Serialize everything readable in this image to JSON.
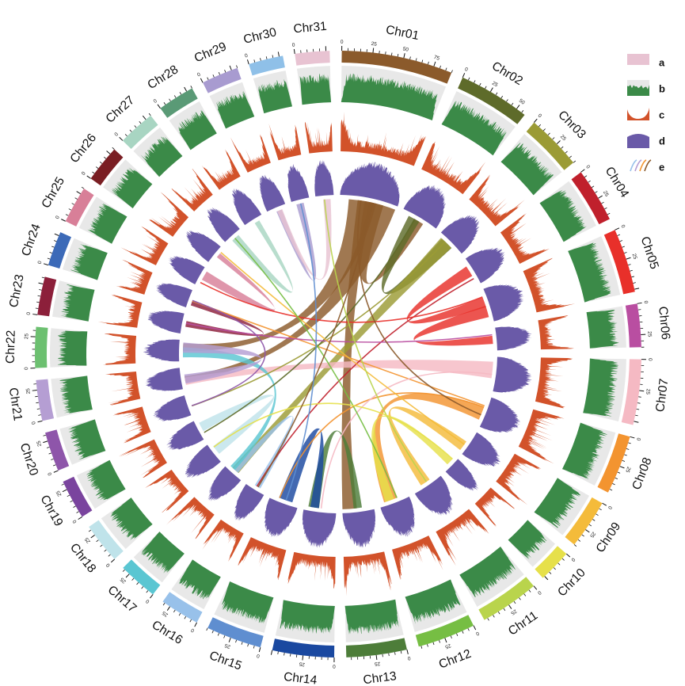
{
  "chart_data": {
    "type": "circos",
    "chromosomes": [
      {
        "name": "Chr01",
        "length": 90,
        "color": "#8b5a2b"
      },
      {
        "name": "Chr02",
        "length": 58,
        "color": "#5e6b2a"
      },
      {
        "name": "Chr03",
        "length": 45,
        "color": "#9b9b35"
      },
      {
        "name": "Chr04",
        "length": 44,
        "color": "#c0202c"
      },
      {
        "name": "Chr05",
        "length": 52,
        "color": "#e8302a"
      },
      {
        "name": "Chr06",
        "length": 35,
        "color": "#b94ea1"
      },
      {
        "name": "Chr07",
        "length": 53,
        "color": "#f5b9c3"
      },
      {
        "name": "Chr08",
        "length": 48,
        "color": "#f39430"
      },
      {
        "name": "Chr09",
        "length": 40,
        "color": "#f4bb3a"
      },
      {
        "name": "Chr10",
        "length": 27,
        "color": "#e6e04a"
      },
      {
        "name": "Chr11",
        "length": 48,
        "color": "#b9d44c"
      },
      {
        "name": "Chr12",
        "length": 47,
        "color": "#76be43"
      },
      {
        "name": "Chr13",
        "length": 49,
        "color": "#4d7d39"
      },
      {
        "name": "Chr14",
        "length": 50,
        "color": "#1a48a0"
      },
      {
        "name": "Chr15",
        "length": 45,
        "color": "#5f8ed0"
      },
      {
        "name": "Chr16",
        "length": 32,
        "color": "#98c1ea"
      },
      {
        "name": "Chr17",
        "length": 32,
        "color": "#5ac6d2"
      },
      {
        "name": "Chr18",
        "length": 33,
        "color": "#bfe3ea"
      },
      {
        "name": "Chr19",
        "length": 32,
        "color": "#7a449e"
      },
      {
        "name": "Chr20",
        "length": 32,
        "color": "#8e55aa"
      },
      {
        "name": "Chr21",
        "length": 33,
        "color": "#b59ed3"
      },
      {
        "name": "Chr22",
        "length": 33,
        "color": "#6cc070"
      },
      {
        "name": "Chr23",
        "length": 31,
        "color": "#8c1f3a"
      },
      {
        "name": "Chr24",
        "length": 28,
        "color": "#3c6ab8"
      },
      {
        "name": "Chr25",
        "length": 30,
        "color": "#d87f98"
      },
      {
        "name": "Chr26",
        "length": 30,
        "color": "#7a1e23"
      },
      {
        "name": "Chr27",
        "length": 30,
        "color": "#a8d5c2"
      },
      {
        "name": "Chr28",
        "length": 30,
        "color": "#5a9a76"
      },
      {
        "name": "Chr29",
        "length": 30,
        "color": "#a89bd0"
      },
      {
        "name": "Chr30",
        "length": 28,
        "color": "#8fc0e8"
      },
      {
        "name": "Chr31",
        "length": 28,
        "color": "#e8c3d2"
      }
    ],
    "tracks": [
      {
        "id": "a",
        "kind": "ideogram"
      },
      {
        "id": "b",
        "kind": "histogram",
        "color": "#3b8a48",
        "background": "#e8e8e8"
      },
      {
        "id": "c",
        "kind": "histogram",
        "color": "#d2522a"
      },
      {
        "id": "d",
        "kind": "histogram",
        "color": "#6a5aa8"
      },
      {
        "id": "e",
        "kind": "links"
      }
    ],
    "links": [
      {
        "from": "Chr01",
        "to": "Chr13",
        "kind": "ribbon"
      },
      {
        "from": "Chr01",
        "to": "Chr21",
        "kind": "ribbon"
      },
      {
        "from": "Chr01",
        "to": "Chr22",
        "kind": "ribbon"
      },
      {
        "from": "Chr01",
        "to": "Chr02",
        "kind": "ribbon"
      },
      {
        "from": "Chr02",
        "to": "Chr03",
        "kind": "ribbon"
      },
      {
        "from": "Chr03",
        "to": "Chr17",
        "kind": "ribbon"
      },
      {
        "from": "Chr05",
        "to": "Chr06",
        "kind": "ribbon"
      },
      {
        "from": "Chr05",
        "to": "Chr04",
        "kind": "ribbon"
      },
      {
        "from": "Chr07",
        "to": "Chr21",
        "kind": "ribbon"
      },
      {
        "from": "Chr08",
        "to": "Chr12",
        "kind": "ribbon"
      },
      {
        "from": "Chr09",
        "to": "Chr11",
        "kind": "ribbon"
      },
      {
        "from": "Chr10",
        "to": "Chr12",
        "kind": "ribbon"
      },
      {
        "from": "Chr13",
        "to": "Chr14",
        "kind": "ribbon"
      },
      {
        "from": "Chr14",
        "to": "Chr15",
        "kind": "ribbon"
      },
      {
        "from": "Chr16",
        "to": "Chr17",
        "kind": "ribbon"
      },
      {
        "from": "Chr17",
        "to": "Chr22",
        "kind": "ribbon"
      },
      {
        "from": "Chr18",
        "to": "Chr19",
        "kind": "ribbon"
      },
      {
        "from": "Chr21",
        "to": "Chr22",
        "kind": "ribbon"
      },
      {
        "from": "Chr23",
        "to": "Chr24",
        "kind": "ribbon"
      },
      {
        "from": "Chr25",
        "to": "Chr26",
        "kind": "ribbon"
      },
      {
        "from": "Chr27",
        "to": "Chr28",
        "kind": "ribbon"
      },
      {
        "from": "Chr29",
        "to": "Chr30",
        "kind": "ribbon"
      },
      {
        "from": "Chr31",
        "to": "Chr29",
        "kind": "ribbon"
      },
      {
        "from": "Chr08",
        "to": "Chr15",
        "kind": "line"
      },
      {
        "from": "Chr08",
        "to": "Chr24",
        "kind": "line"
      },
      {
        "from": "Chr07",
        "to": "Chr14",
        "kind": "line"
      },
      {
        "from": "Chr04",
        "to": "Chr16",
        "kind": "line"
      },
      {
        "from": "Chr03",
        "to": "Chr20",
        "kind": "line"
      },
      {
        "from": "Chr02",
        "to": "Chr19",
        "kind": "line"
      },
      {
        "from": "Chr06",
        "to": "Chr23",
        "kind": "line"
      },
      {
        "from": "Chr05",
        "to": "Chr25",
        "kind": "line"
      },
      {
        "from": "Chr09",
        "to": "Chr26",
        "kind": "line"
      },
      {
        "from": "Chr11",
        "to": "Chr31",
        "kind": "line"
      },
      {
        "from": "Chr12",
        "to": "Chr27",
        "kind": "line"
      },
      {
        "from": "Chr10",
        "to": "Chr18",
        "kind": "line"
      },
      {
        "from": "Chr01",
        "to": "Chr16",
        "kind": "line"
      },
      {
        "from": "Chr01",
        "to": "Chr08",
        "kind": "line"
      },
      {
        "from": "Chr15",
        "to": "Chr30",
        "kind": "line"
      },
      {
        "from": "Chr20",
        "to": "Chr24",
        "kind": "line"
      }
    ],
    "legend": {
      "position": "top-right",
      "entries": [
        "a",
        "b",
        "c",
        "d",
        "e"
      ]
    }
  }
}
